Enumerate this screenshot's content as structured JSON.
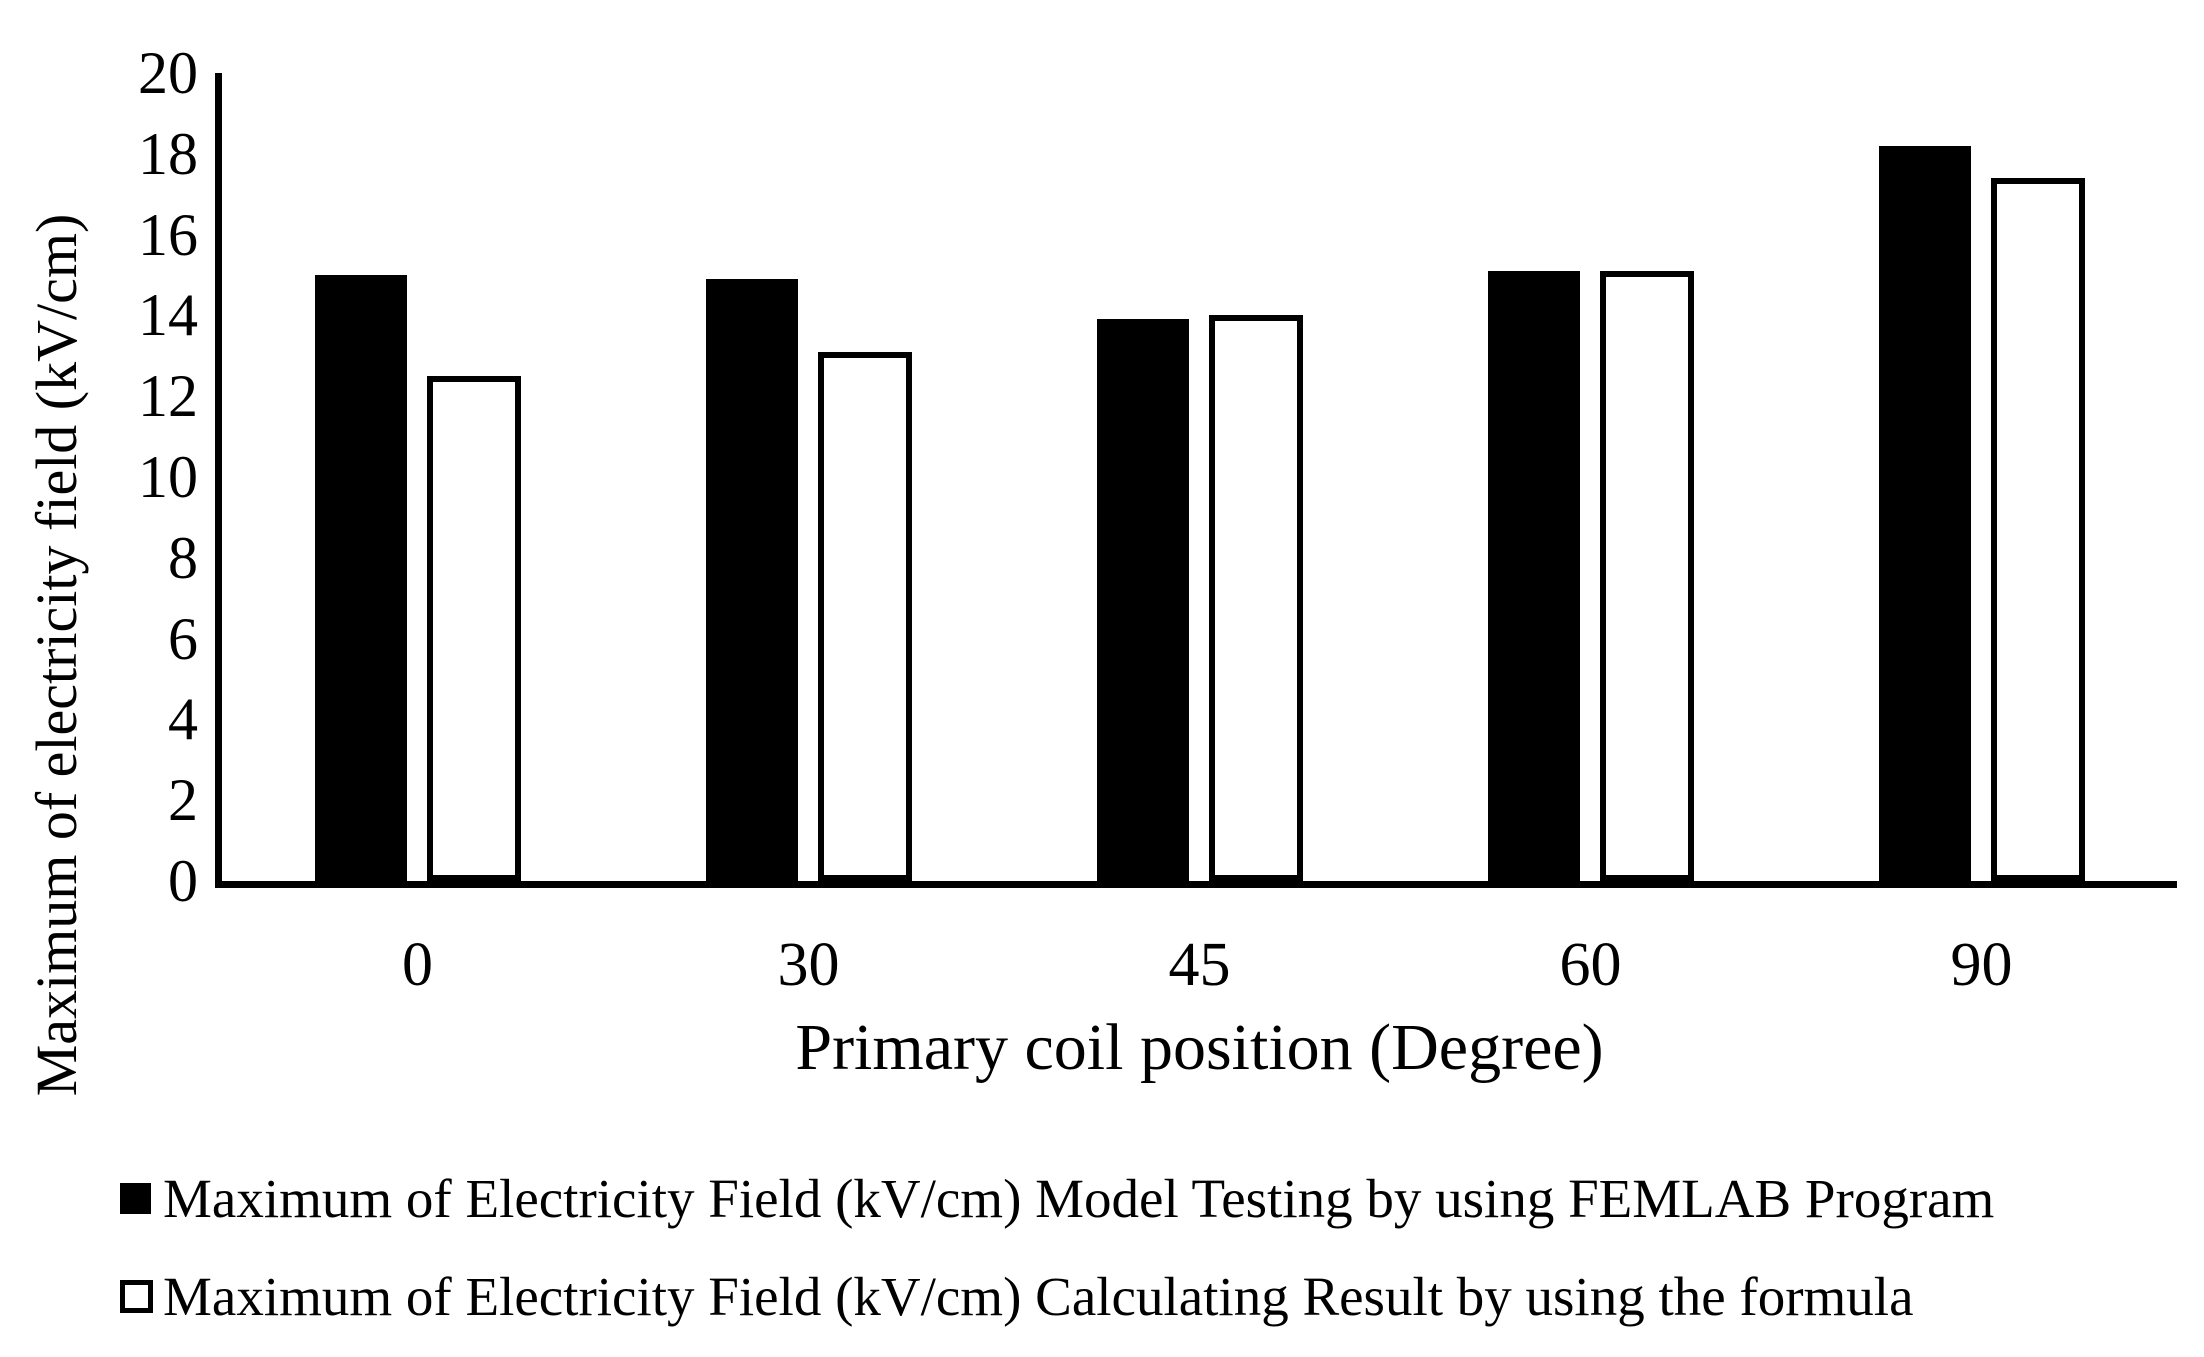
{
  "colors": {
    "foreground": "#000000",
    "background": "#ffffff",
    "series_femlab_fill": "#000000",
    "series_formula_fill": "#ffffff"
  },
  "chart_data": {
    "type": "bar",
    "title": "",
    "categories": [
      "0",
      "30",
      "45",
      "60",
      "90"
    ],
    "series": [
      {
        "name": "Maximum of Electricity Field (kV/cm) Model Testing by using FEMLAB Program",
        "marker": "filled-black-square",
        "values": [
          15.0,
          14.9,
          13.9,
          15.1,
          18.2
        ]
      },
      {
        "name": "Maximum of Electricity Field (kV/cm) Calculating Result by using the formula",
        "marker": "outlined-white-square",
        "values": [
          12.5,
          13.1,
          14.0,
          15.1,
          17.4
        ]
      }
    ],
    "xlabel": "Primary coil position (Degree)",
    "ylabel": "Maximum of electricity field (kV/cm)",
    "ylim": [
      0,
      20
    ],
    "yticks": [
      0,
      2,
      4,
      6,
      8,
      10,
      12,
      14,
      16,
      18,
      20
    ],
    "grid": false,
    "legend_position": "bottom-left"
  }
}
